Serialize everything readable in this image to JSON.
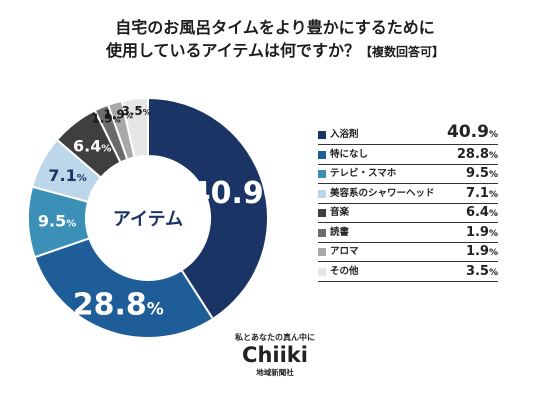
{
  "title_line1": "自宅のお風呂タイムをより豊かにするために",
  "title_line2": "使用しているアイテムは何ですか？",
  "title_note": "【複数回答可】",
  "chart_data": {
    "type": "pie",
    "center_label": "アイテム",
    "categories": [
      "入浴剤",
      "特になし",
      "テレビ・スマホ",
      "美容系のシャワーヘッド",
      "音楽",
      "読書",
      "アロマ",
      "その他"
    ],
    "values": [
      40.9,
      28.8,
      9.5,
      7.1,
      6.4,
      1.9,
      1.9,
      3.5
    ],
    "unit": "%",
    "colors": [
      "#1a3466",
      "#1f5d99",
      "#3c90b8",
      "#bcd6ea",
      "#3f3f3f",
      "#6b6b6b",
      "#a8a8a8",
      "#e6e6e6"
    ],
    "label_colors": [
      "#ffffff",
      "#ffffff",
      "#ffffff",
      "#1a3466",
      "#ffffff",
      "#1a1a1a",
      "#1a1a1a",
      "#1a1a1a"
    ],
    "legend_position": "right"
  },
  "logo": {
    "tagline": "私とあなたの真ん中に",
    "name": "Chiiki",
    "sub": "地域新聞社"
  }
}
